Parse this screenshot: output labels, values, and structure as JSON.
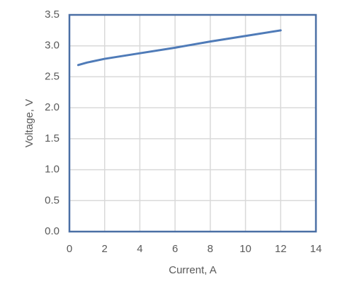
{
  "chart_data": {
    "type": "line",
    "xlabel": "Current, A",
    "ylabel": "Voltage, V",
    "series": [
      {
        "color": "#4f7bb8",
        "x": [
          0.5,
          1,
          2,
          4,
          6,
          8,
          10,
          12
        ],
        "values": [
          2.69,
          2.73,
          2.79,
          2.88,
          2.97,
          3.07,
          3.16,
          3.25
        ]
      }
    ],
    "xlim": [
      0,
      14
    ],
    "xticks": [
      0,
      2,
      4,
      6,
      8,
      10,
      12,
      14
    ],
    "ylim": [
      0,
      3.5
    ],
    "yticks": [
      {
        "value": 0,
        "label": "0.0"
      },
      0.5,
      {
        "value": 1,
        "label": "1.0"
      },
      1.5,
      {
        "value": 2,
        "label": "2.0"
      },
      2.5,
      {
        "value": 3,
        "label": "3.0"
      },
      3.5
    ],
    "grid": true,
    "frame_color": "#4a6fa5"
  }
}
